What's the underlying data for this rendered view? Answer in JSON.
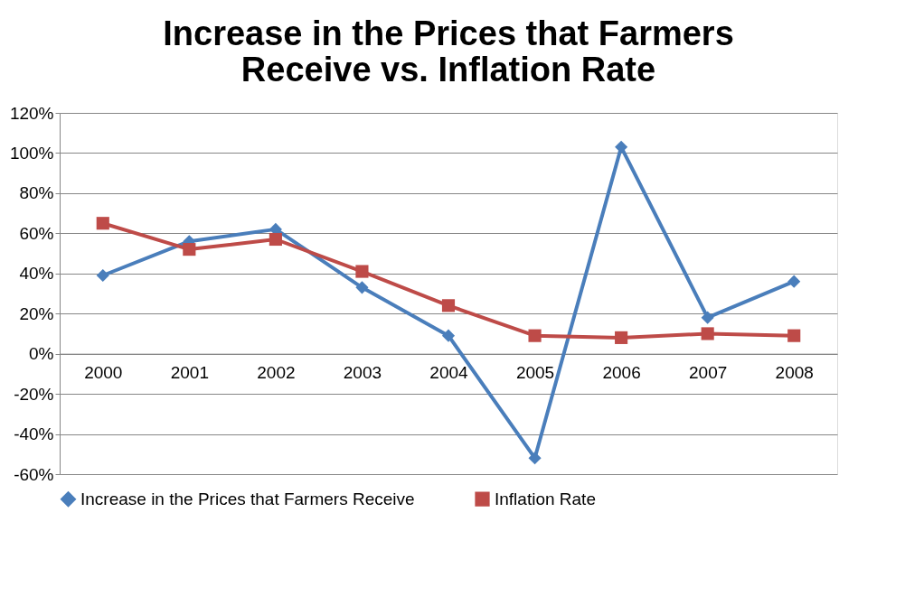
{
  "chart_data": {
    "type": "line",
    "title": [
      "Increase in the Prices that Farmers",
      "Receive vs. Inflation Rate"
    ],
    "categories": [
      "2000",
      "2001",
      "2002",
      "2003",
      "2004",
      "2005",
      "2006",
      "2007",
      "2008"
    ],
    "series": [
      {
        "name": "Increase in the Prices that Farmers Receive",
        "color": "#4a7ebb",
        "marker": "diamond",
        "values": [
          39,
          56,
          62,
          33,
          9,
          -52,
          103,
          18,
          36
        ]
      },
      {
        "name": "Inflation Rate",
        "color": "#be4b48",
        "marker": "square",
        "values": [
          65,
          52,
          57,
          41,
          24,
          9,
          8,
          10,
          9
        ]
      }
    ],
    "ylim": [
      -60,
      120
    ],
    "yticks": [
      {
        "value": -60,
        "label": "-60%"
      },
      {
        "value": -40,
        "label": "-40%"
      },
      {
        "value": -20,
        "label": "-20%"
      },
      {
        "value": 0,
        "label": "0%"
      },
      {
        "value": 20,
        "label": "20%"
      },
      {
        "value": 40,
        "label": "40%"
      },
      {
        "value": 60,
        "label": "60%"
      },
      {
        "value": 80,
        "label": "80%"
      },
      {
        "value": 100,
        "label": "100%"
      },
      {
        "value": 120,
        "label": "120%"
      }
    ],
    "grid": "y",
    "legend": "bottom",
    "line_style": "solid"
  }
}
